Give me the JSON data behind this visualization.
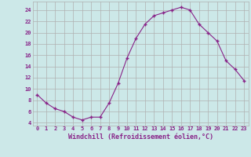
{
  "x": [
    0,
    1,
    2,
    3,
    4,
    5,
    6,
    7,
    8,
    9,
    10,
    11,
    12,
    13,
    14,
    15,
    16,
    17,
    18,
    19,
    20,
    21,
    22,
    23
  ],
  "y": [
    9,
    7.5,
    6.5,
    6,
    5,
    4.5,
    5,
    5,
    7.5,
    11,
    15.5,
    19,
    21.5,
    23,
    23.5,
    24,
    24.5,
    24,
    21.5,
    20,
    18.5,
    15,
    13.5,
    11.5
  ],
  "line_color": "#882288",
  "marker": "+",
  "bg_color": "#cce8e8",
  "grid_color": "#b0b0b0",
  "xlabel": "Windchill (Refroidissement éolien,°C)",
  "xlabel_color": "#882288",
  "tick_label_color": "#882288",
  "ylim": [
    3.5,
    25.5
  ],
  "xlim": [
    -0.5,
    23.5
  ],
  "yticks": [
    4,
    6,
    8,
    10,
    12,
    14,
    16,
    18,
    20,
    22,
    24
  ],
  "xticks": [
    0,
    1,
    2,
    3,
    4,
    5,
    6,
    7,
    8,
    9,
    10,
    11,
    12,
    13,
    14,
    15,
    16,
    17,
    18,
    19,
    20,
    21,
    22,
    23
  ],
  "tick_fontsize": 5.0,
  "xlabel_fontsize": 6.0
}
